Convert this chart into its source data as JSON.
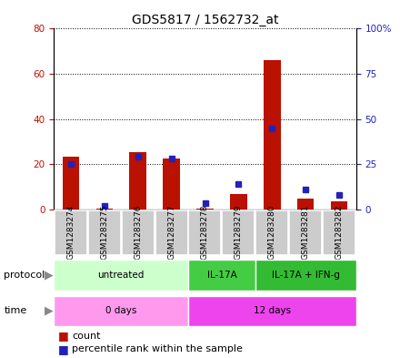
{
  "title": "GDS5817 / 1562732_at",
  "samples": [
    "GSM1283274",
    "GSM1283275",
    "GSM1283276",
    "GSM1283277",
    "GSM1283278",
    "GSM1283279",
    "GSM1283280",
    "GSM1283281",
    "GSM1283282"
  ],
  "count_values": [
    23.5,
    0.2,
    25.5,
    22.5,
    0.2,
    7,
    66,
    5,
    3.5
  ],
  "percentile_values": [
    25,
    2,
    29,
    28,
    3.5,
    14,
    45,
    11,
    8
  ],
  "left_ylim": [
    0,
    80
  ],
  "right_ylim": [
    0,
    100
  ],
  "left_yticks": [
    0,
    20,
    40,
    60,
    80
  ],
  "right_yticks": [
    0,
    25,
    50,
    75,
    100
  ],
  "right_yticklabels": [
    "0",
    "25",
    "50",
    "75",
    "100%"
  ],
  "protocol_groups": [
    {
      "label": "untreated",
      "start": 0,
      "end": 4,
      "color": "#ccffcc"
    },
    {
      "label": "IL-17A",
      "start": 4,
      "end": 6,
      "color": "#44cc44"
    },
    {
      "label": "IL-17A + IFN-g",
      "start": 6,
      "end": 9,
      "color": "#33bb33"
    }
  ],
  "time_groups": [
    {
      "label": "0 days",
      "start": 0,
      "end": 4,
      "color": "#ff99ee"
    },
    {
      "label": "12 days",
      "start": 4,
      "end": 9,
      "color": "#ee44ee"
    }
  ],
  "bar_color": "#bb1100",
  "dot_color": "#2222bb",
  "sample_bg_color": "#cccccc",
  "title_fontsize": 10,
  "tick_fontsize": 7.5,
  "label_fontsize": 8,
  "bar_width": 0.5
}
